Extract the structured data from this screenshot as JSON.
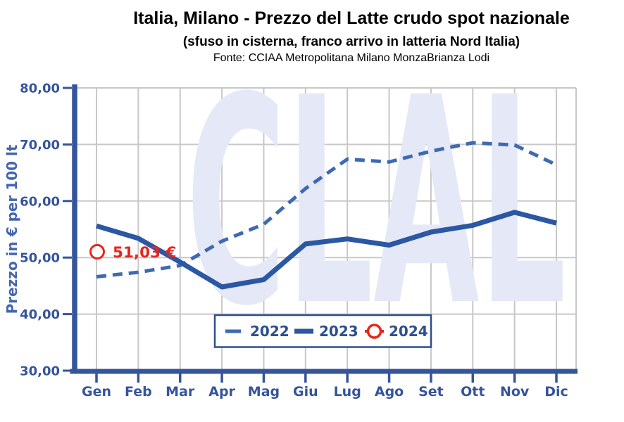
{
  "header": {
    "title": "Italia, Milano - Prezzo del Latte crudo spot nazionale",
    "subtitle": "(sfuso in cisterna, franco arrivo in latteria Nord Italia)",
    "source": "Fonte: CCIAA Metropolitana Milano MonzaBrianza Lodi"
  },
  "watermark": "CLAL",
  "chart_data": {
    "type": "line",
    "categories": [
      "Gen",
      "Feb",
      "Mar",
      "Apr",
      "Mag",
      "Giu",
      "Lug",
      "Ago",
      "Set",
      "Ott",
      "Nov",
      "Dic"
    ],
    "series": [
      {
        "name": "2022",
        "style": "dashed",
        "color": "#3d6ab2",
        "values": [
          46.6,
          47.4,
          48.6,
          52.9,
          55.9,
          62.2,
          67.4,
          66.9,
          68.8,
          70.3,
          69.9,
          66.4
        ]
      },
      {
        "name": "2023",
        "style": "solid",
        "color": "#2b57a3",
        "values": [
          55.6,
          53.4,
          49.2,
          44.8,
          46.1,
          52.4,
          53.3,
          52.2,
          54.5,
          55.7,
          58.0,
          56.1
        ]
      },
      {
        "name": "2024",
        "style": "marker",
        "color": "#e8251d",
        "values": [
          51.03
        ],
        "annotation": "51,03 €"
      }
    ],
    "title": "Italia, Milano - Prezzo del Latte crudo spot nazionale",
    "xlabel": "",
    "ylabel": "Prezzo in € per 100 lt",
    "ylim": [
      30,
      80
    ],
    "ytick_step": 10,
    "ytick_labels": [
      "30,00",
      "40,00",
      "50,00",
      "60,00",
      "70,00",
      "80,00"
    ],
    "grid": true,
    "legend_position": "bottom-center"
  },
  "colors": {
    "axis": "#35549b",
    "axis_title": "#4466ae",
    "legend_text": "#2d4f8e",
    "grid": "#c8c8c8",
    "watermark": "#e5e8f6",
    "annotation_red": "#e8251d",
    "background": "#ffffff"
  }
}
